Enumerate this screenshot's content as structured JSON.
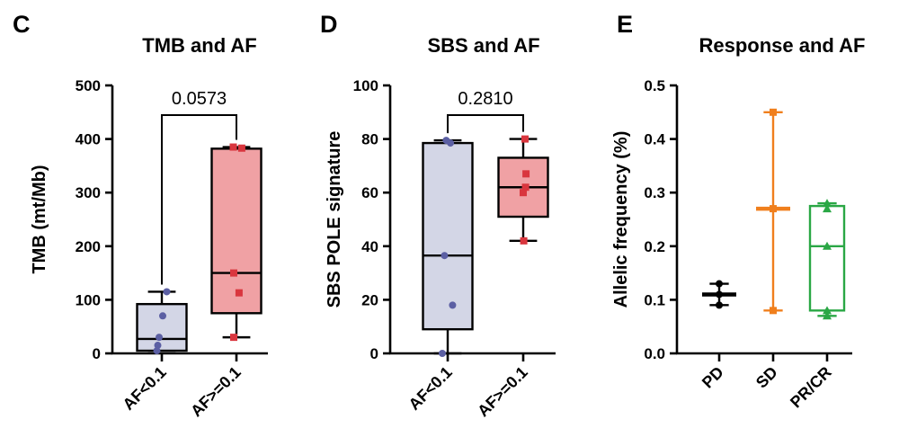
{
  "chart_data": [
    {
      "type": "box",
      "panel_label": "C",
      "title": "TMB and AF",
      "ylabel": "TMB (mt/Mb)",
      "xlabel": "",
      "ylim": [
        0,
        500
      ],
      "yticks": [
        "0",
        "100",
        "200",
        "300",
        "400",
        "500"
      ],
      "categories": [
        "AF<0.1",
        "AF>=0.1"
      ],
      "boxes": [
        {
          "name": "AF<0.1",
          "min": 5,
          "q1": 5,
          "median": 27,
          "q3": 92,
          "max": 115,
          "points": [
            115,
            70,
            30,
            15,
            5
          ],
          "fill": "#d3d6e6",
          "point_color": "#5b5fa3"
        },
        {
          "name": "AF>=0.1",
          "min": 30,
          "q1": 75,
          "median": 150,
          "q3": 382,
          "max": 385,
          "points": [
            385,
            383,
            150,
            113,
            30
          ],
          "fill": "#f0a1a4",
          "point_color": "#d9363e"
        }
      ],
      "comparison": {
        "label": "0.0573",
        "from": 0,
        "to": 1
      }
    },
    {
      "type": "box",
      "panel_label": "D",
      "title": "SBS and AF",
      "ylabel": "SBS POLE signature",
      "xlabel": "",
      "ylim": [
        0,
        100
      ],
      "yticks": [
        "0",
        "20",
        "40",
        "60",
        "80",
        "100"
      ],
      "categories": [
        "AF<0.1",
        "AF>=0.1"
      ],
      "boxes": [
        {
          "name": "AF<0.1",
          "min": 0,
          "q1": 9,
          "median": 36.5,
          "q3": 78.5,
          "max": 79.5,
          "points": [
            79.5,
            78.5,
            36.5,
            18,
            0
          ],
          "fill": "#d3d6e6",
          "point_color": "#5b5fa3"
        },
        {
          "name": "AF>=0.1",
          "min": 42,
          "q1": 51,
          "median": 62,
          "q3": 73,
          "max": 80,
          "points": [
            80,
            67,
            62,
            60,
            42
          ],
          "fill": "#f0a1a4",
          "point_color": "#d9363e"
        }
      ],
      "comparison": {
        "label": "0.2810",
        "from": 0,
        "to": 1
      }
    },
    {
      "type": "box",
      "panel_label": "E",
      "title": "Response and AF",
      "ylabel": "Allelic frequency (%)",
      "xlabel": "",
      "ylim": [
        0,
        0.5
      ],
      "yticks": [
        "0.0",
        "0.1",
        "0.2",
        "0.3",
        "0.4",
        "0.5"
      ],
      "categories": [
        "PD",
        "SD",
        "PR/CR"
      ],
      "boxes": [
        {
          "name": "PD",
          "min": 0.09,
          "q1": 0.11,
          "median": 0.11,
          "q3": 0.11,
          "max": 0.13,
          "points": [
            0.13,
            0.11,
            0.09
          ],
          "fill": "none",
          "color": "#000000",
          "marker": "circle"
        },
        {
          "name": "SD",
          "min": 0.08,
          "q1": 0.27,
          "median": 0.27,
          "q3": 0.27,
          "max": 0.45,
          "points": [
            0.45,
            0.27,
            0.08
          ],
          "fill": "none",
          "color": "#f07f1d",
          "marker": "square"
        },
        {
          "name": "PR/CR",
          "min": 0.07,
          "q1": 0.08,
          "median": 0.2,
          "q3": 0.275,
          "max": 0.28,
          "points": [
            0.28,
            0.27,
            0.2,
            0.08,
            0.07
          ],
          "fill": "none",
          "color": "#2aa745",
          "marker": "triangle"
        }
      ]
    }
  ]
}
